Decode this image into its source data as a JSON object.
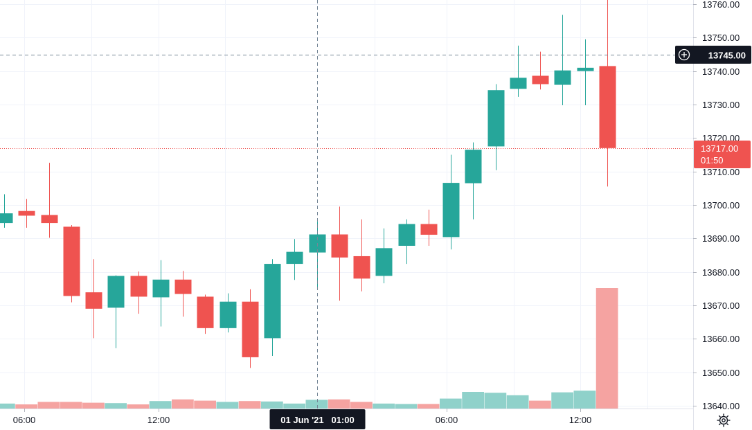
{
  "chart_data": {
    "type": "candlestick",
    "price_axis": {
      "ticks": [
        "13760.00",
        "13750.00",
        "13740.00",
        "13730.00",
        "13720.00",
        "13710.00",
        "13700.00",
        "13690.00",
        "13680.00",
        "13670.00",
        "13660.00",
        "13650.00",
        "13640.00"
      ],
      "range": [
        13638,
        13762
      ]
    },
    "time_axis": {
      "ticks": [
        "06:00",
        "12:00",
        "06:00",
        "12:00"
      ]
    },
    "crosshair": {
      "price_label": "13745.00",
      "price": 13745,
      "time_label": "01 Jun '21   01:00",
      "time_bar_index": 14
    },
    "last_price": {
      "label": "13717.00",
      "countdown": "01:50",
      "price": 13717
    },
    "colors": {
      "up": "#26a69a",
      "down": "#ef5350",
      "up_volume": "#8fd1ca",
      "down_volume": "#f5a3a1",
      "grid": "#f0f3fa",
      "axis_text": "#131722",
      "dark_label": "#131722"
    },
    "candles": [
      {
        "o": 13694.6,
        "h": 13703.2,
        "l": 13693.2,
        "c": 13697.5
      },
      {
        "o": 13698.2,
        "h": 13701.8,
        "l": 13693.2,
        "c": 13696.8
      },
      {
        "o": 13697.0,
        "h": 13712.6,
        "l": 13690.2,
        "c": 13694.6
      },
      {
        "o": 13693.5,
        "h": 13694.0,
        "l": 13670.9,
        "c": 13672.8
      },
      {
        "o": 13673.9,
        "h": 13683.8,
        "l": 13660.2,
        "c": 13669.0
      },
      {
        "o": 13669.3,
        "h": 13679.0,
        "l": 13657.2,
        "c": 13678.8
      },
      {
        "o": 13678.8,
        "h": 13680.1,
        "l": 13667.5,
        "c": 13672.6
      },
      {
        "o": 13672.4,
        "h": 13683.5,
        "l": 13663.7,
        "c": 13677.7
      },
      {
        "o": 13677.7,
        "h": 13680.3,
        "l": 13666.6,
        "c": 13673.4
      },
      {
        "o": 13672.6,
        "h": 13673.2,
        "l": 13661.5,
        "c": 13663.2
      },
      {
        "o": 13663.2,
        "h": 13673.6,
        "l": 13661.9,
        "c": 13671.1
      },
      {
        "o": 13671.1,
        "h": 13674.8,
        "l": 13651.3,
        "c": 13654.5
      },
      {
        "o": 13660.2,
        "h": 13683.8,
        "l": 13654.9,
        "c": 13682.4
      },
      {
        "o": 13682.4,
        "h": 13689.8,
        "l": 13677.6,
        "c": 13686.0
      },
      {
        "o": 13685.8,
        "h": 13695.0,
        "l": 13674.6,
        "c": 13691.2
      },
      {
        "o": 13691.2,
        "h": 13699.5,
        "l": 13671.4,
        "c": 13684.3
      },
      {
        "o": 13684.7,
        "h": 13695.7,
        "l": 13674.2,
        "c": 13678.0
      },
      {
        "o": 13678.8,
        "h": 13693.0,
        "l": 13676.6,
        "c": 13687.1
      },
      {
        "o": 13687.8,
        "h": 13695.7,
        "l": 13682.4,
        "c": 13694.3
      },
      {
        "o": 13694.3,
        "h": 13698.6,
        "l": 13687.8,
        "c": 13691.1
      },
      {
        "o": 13690.4,
        "h": 13715.0,
        "l": 13686.7,
        "c": 13706.6
      },
      {
        "o": 13706.5,
        "h": 13718.7,
        "l": 13695.7,
        "c": 13716.5
      },
      {
        "o": 13717.5,
        "h": 13736.1,
        "l": 13710.4,
        "c": 13734.3
      },
      {
        "o": 13734.7,
        "h": 13747.6,
        "l": 13732.3,
        "c": 13738.0
      },
      {
        "o": 13738.6,
        "h": 13745.8,
        "l": 13734.5,
        "c": 13736.1
      },
      {
        "o": 13735.9,
        "h": 13756.8,
        "l": 13729.8,
        "c": 13740.2
      },
      {
        "o": 13740.0,
        "h": 13749.5,
        "l": 13729.8,
        "c": 13741.0
      },
      {
        "o": 13741.5,
        "h": 13762.0,
        "l": 13705.5,
        "c": 13717.0
      }
    ],
    "volume": [
      0.012,
      0.01,
      0.016,
      0.016,
      0.014,
      0.013,
      0.01,
      0.018,
      0.022,
      0.019,
      0.016,
      0.018,
      0.017,
      0.012,
      0.021,
      0.022,
      0.016,
      0.012,
      0.011,
      0.011,
      0.024,
      0.04,
      0.038,
      0.032,
      0.019,
      0.039,
      0.043,
      0.29
    ]
  }
}
